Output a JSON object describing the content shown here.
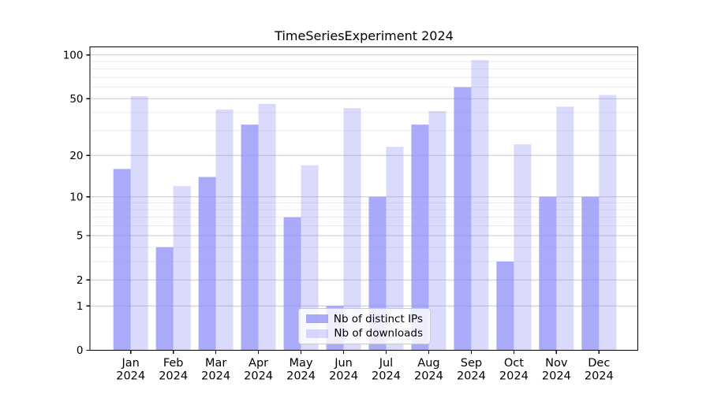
{
  "chart_data": {
    "type": "bar",
    "title": "TimeSeriesExperiment 2024",
    "categories": [
      "Jan 2024",
      "Feb 2024",
      "Mar 2024",
      "Apr 2024",
      "May 2024",
      "Jun 2024",
      "Jul 2024",
      "Aug 2024",
      "Sep 2024",
      "Oct 2024",
      "Nov 2024",
      "Dec 2024"
    ],
    "series": [
      {
        "name": "Nb of distinct IPs",
        "values": [
          16,
          4,
          14,
          33,
          7,
          1,
          10,
          33,
          60,
          3,
          10,
          10
        ],
        "color": "rgba(137,137,250,0.72)"
      },
      {
        "name": "Nb of downloads",
        "values": [
          52,
          12,
          42,
          46,
          17,
          43,
          23,
          41,
          92,
          24,
          44,
          53
        ],
        "color": "rgba(137,137,250,0.31)"
      }
    ],
    "xlabel": "",
    "ylabel": "",
    "y_scale": "log1p",
    "y_ticks": [
      0,
      1,
      2,
      5,
      10,
      20,
      50,
      100
    ],
    "y_minor_gridlines": [
      3,
      4,
      6,
      7,
      8,
      9,
      30,
      40,
      60,
      70,
      80,
      90
    ],
    "ylim": [
      0,
      113
    ],
    "grid": true,
    "legend_position": "lower center inside plot",
    "colors": {
      "bar_dark": "rgba(137,137,250,0.72)",
      "bar_light": "rgba(137,137,250,0.31)",
      "major_grid": "#c9c9c9",
      "minor_grid": "#ececec",
      "axis": "#000000",
      "text": "#000000",
      "background": "#ffffff"
    }
  },
  "legend": {
    "items": [
      "Nb of distinct IPs",
      "Nb of downloads"
    ]
  }
}
